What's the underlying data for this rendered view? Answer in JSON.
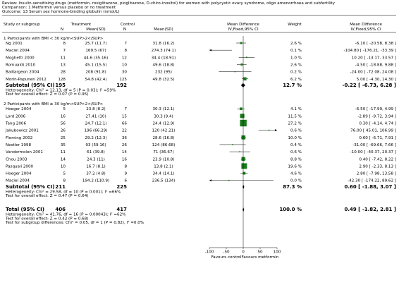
{
  "header": {
    "review": "Review:  Insulin-sensitising drugs (metformin, rosiglitazone, pioglitazone, D-chiro-inositol) for women with polycystic ovary syndrome, oligo amenorrhoea and subfertility",
    "comparison": "Comparison:  1 Metformin versus placebo or no treatment",
    "outcome": "Outcome:  13 Serum sex hormone-binding globulin (nmol/L)"
  },
  "columns": {
    "study": "Study or subgroup",
    "treatment": "Treatment",
    "control": "Control",
    "n": "N",
    "mean_sd": "Mean(SD)",
    "md_top": "Mean Difference",
    "md_sub": "IV,Fixed,95% CI",
    "weight": "Weight",
    "md_top2": "Mean Difference",
    "md_sub2": "IV,Fixed,95% CI"
  },
  "chart_data": {
    "type": "forest",
    "axis": {
      "ticks": [
        -100,
        -50,
        0,
        50,
        100
      ],
      "tick_labels": [
        "-100",
        "-50",
        "0",
        "50",
        "100"
      ],
      "xlim": [
        -100,
        100
      ]
    },
    "favours_left": "Favours control",
    "favours_right": "Favours metformin",
    "subgroups": [
      {
        "title": "1 Participants with BMI < 30 kg/m<SUP>2</SUP>",
        "studies": [
          {
            "name": "Ng 2001",
            "tn": "8",
            "tms": "25.7 (11.7)",
            "cn": "7",
            "cms": "31.8 (16.2)",
            "md": -6.1,
            "lo": -20.58,
            "hi": 8.38,
            "weight": "2.6 %",
            "ci_text": "-6.10 [ -20.58, 8.38 ]"
          },
          {
            "name": "Maciel 2004",
            "tn": "7",
            "tms": "169.5 (67)",
            "cn": "8",
            "cms": "274.3 (74.1)",
            "md": -104.8,
            "lo": -176.21,
            "hi": -33.39,
            "weight": "0.1 %",
            "ci_text": "-104.80 [ -176.21, -33.39 ]"
          },
          {
            "name": "Moghetti 2000",
            "tn": "11",
            "tms": "44.6 (35.16)",
            "cn": "12",
            "cms": "34.4 (18.91)",
            "md": 10.2,
            "lo": -13.17,
            "hi": 33.57,
            "weight": "1.0 %",
            "ci_text": "10.20 [ -13.17, 33.57 ]"
          },
          {
            "name": "Romualdi 2010",
            "tn": "13",
            "tms": "45.1 (15.5)",
            "cn": "10",
            "cms": "49.6 (18.8)",
            "md": -4.5,
            "lo": -18.88,
            "hi": 9.88,
            "weight": "2.6 %",
            "ci_text": "-4.50 [ -18.88, 9.88 ]"
          },
          {
            "name": "Baillargeon 2004",
            "tn": "28",
            "tms": "208 (91.8)",
            "cn": "30",
            "cms": "232 (95)",
            "md": -24.0,
            "lo": -72.08,
            "hi": 24.08,
            "weight": "0.2 %",
            "ci_text": "-24.00 [ -72.08, 24.08 ]"
          },
          {
            "name": "Morin-Papunen 2012",
            "tn": "128",
            "tms": "54.8 (42.4)",
            "cn": "125",
            "cms": "49.8 (32.5)",
            "md": 5.0,
            "lo": -4.3,
            "hi": 14.3,
            "weight": "6.2 %",
            "ci_text": "5.00 [ -4.30, 14.30 ]"
          }
        ],
        "subtotal": {
          "label": "Subtotal (95% CI)",
          "tn": "195",
          "cn": "192",
          "md": -0.22,
          "lo": -6.73,
          "hi": 6.28,
          "weight": "12.7 %",
          "ci_text": "-0.22 [ -6.73, 6.28 ]"
        },
        "heterogeneity": "Heterogeneity: Chi² = 12.13, df = 5 (P = 0.03); I² =59%",
        "effect": "Test for overall effect: Z = 0.07 (P = 0.95)"
      },
      {
        "title": "2 Participants with BMI ≥ 30 kg/m<SUP>2</SUP>",
        "studies": [
          {
            "name": "Hoeger 2004",
            "tn": "5",
            "tms": "23.8 (8.2)",
            "cn": "7",
            "cms": "30.3 (12.1)",
            "md": -6.5,
            "lo": -17.99,
            "hi": 4.99,
            "weight": "4.1 %",
            "ci_text": "-6.50 [ -17.99, 4.99 ]"
          },
          {
            "name": "Lord 2006",
            "tn": "16",
            "tms": "27.41 (10)",
            "cn": "15",
            "cms": "30.3 (9.4)",
            "md": -2.89,
            "lo": -9.72,
            "hi": 3.94,
            "weight": "11.5 %",
            "ci_text": "-2.89 [ -9.72, 3.94 ]"
          },
          {
            "name": "Tang 2006",
            "tn": "56",
            "tms": "24.7 (12.1)",
            "cn": "66",
            "cms": "24.4 (12.9)",
            "md": 0.3,
            "lo": -4.14,
            "hi": 4.74,
            "weight": "27.2 %",
            "ci_text": "0.30 [ -4.14, 4.74 ]"
          },
          {
            "name": "Jakubowicz 2001",
            "tn": "26",
            "tms": "196 (66.29)",
            "cn": "22",
            "cms": "120 (42.21)",
            "md": 76.0,
            "lo": 45.01,
            "hi": 106.99,
            "weight": "0.6 %",
            "ci_text": "76.00 [ 45.01, 106.99 ]"
          },
          {
            "name": "Fleming 2002",
            "tn": "25",
            "tms": "29.2 (12.3)",
            "cn": "36",
            "cms": "28.6 (16.8)",
            "md": 0.6,
            "lo": -6.71,
            "hi": 7.91,
            "weight": "10.0 %",
            "ci_text": "0.60 [ -6.71, 7.91 ]"
          },
          {
            "name": "Nestler 1998",
            "tn": "35",
            "tms": "93 (59.16)",
            "cn": "26",
            "cms": "124 (86.68)",
            "md": -31.0,
            "lo": -69.66,
            "hi": 7.66,
            "weight": "0.4 %",
            "ci_text": "-31.00 [ -69.66, 7.66 ]"
          },
          {
            "name": "Vandermolen 2001",
            "tn": "11",
            "tms": "61 (39.8)",
            "cn": "14",
            "cms": "71 (36.67)",
            "md": -10.0,
            "lo": -40.37,
            "hi": 20.37,
            "weight": "0.6 %",
            "ci_text": "-10.00 [ -40.37, 20.37 ]"
          },
          {
            "name": "Chou 2003",
            "tn": "14",
            "tms": "24.3 (11)",
            "cn": "16",
            "cms": "23.9 (10.8)",
            "md": 0.4,
            "lo": -7.42,
            "hi": 8.22,
            "weight": "8.8 %",
            "ci_text": "0.40 [ -7.42, 8.22 ]"
          },
          {
            "name": "Pasquali 2000",
            "tn": "10",
            "tms": "16.7 (8.1)",
            "cn": "8",
            "cms": "13.8 (2.1)",
            "md": 2.9,
            "lo": -2.33,
            "hi": 8.13,
            "weight": "19.6 %",
            "ci_text": "2.90 [ -2.33, 8.13 ]"
          },
          {
            "name": "Hoeger 2004",
            "tn": "5",
            "tms": "37.2 (4.8)",
            "cn": "9",
            "cms": "34.4 (14.1)",
            "md": 2.8,
            "lo": -7.98,
            "hi": 13.58,
            "weight": "4.6 %",
            "ci_text": "2.80 [ -7.98, 13.58 ]"
          },
          {
            "name": "Maciel 2004",
            "tn": "8",
            "tms": "194.2 (110.9)",
            "cn": "6",
            "cms": "236.5 (134)",
            "md": -42.3,
            "lo": -174.22,
            "hi": 89.62,
            "weight": "0.0 %",
            "ci_text": "-42.30 [ -174.22, 89.62 ]"
          }
        ],
        "subtotal": {
          "label": "Subtotal (95% CI)",
          "tn": "211",
          "cn": "225",
          "md": 0.6,
          "lo": -1.88,
          "hi": 3.07,
          "weight": "87.3 %",
          "ci_text": "0.60 [ -1.88, 3.07 ]"
        },
        "heterogeneity": "Heterogeneity: Chi² = 29.58, df = 10 (P = 0.001); I² =66%",
        "effect": "Test for overall effect: Z = 0.47 (P = 0.64)"
      }
    ],
    "total": {
      "label": "Total (95% CI)",
      "tn": "406",
      "cn": "417",
      "md": 0.49,
      "lo": -1.82,
      "hi": 2.81,
      "weight": "100.0 %",
      "ci_text": "0.49 [ -1.82, 2.81 ]"
    },
    "total_heterogeneity": "Heterogeneity: Chi² = 41.76, df = 16 (P = 0.00043); I² =62%",
    "total_effect": "Test for overall effect: Z = 0.42 (P = 0.68)",
    "subgroup_diff": "Test for subgroup differences: Chi² = 0.05, df = 1 (P = 0.82), I² =0.0%"
  }
}
